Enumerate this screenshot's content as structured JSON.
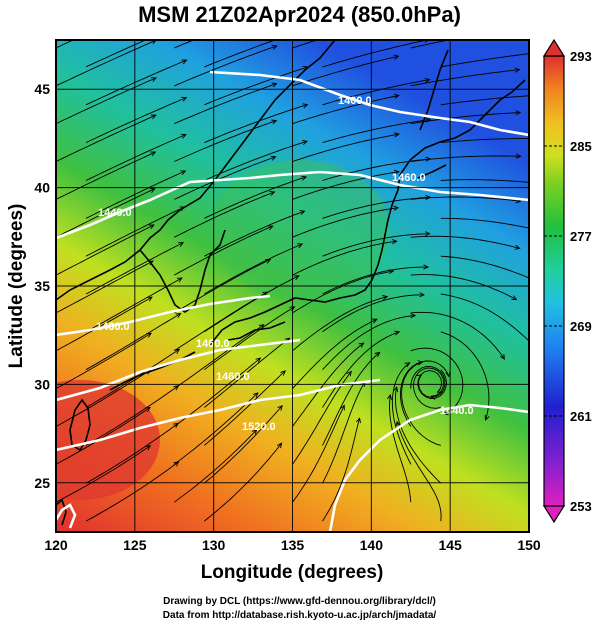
{
  "title": "MSM 21Z02Apr2024 (850.0hPa)",
  "map": {
    "xlabel": "Longitude (degrees)",
    "ylabel": "Latitude  (degrees)",
    "x_ticks": [
      120,
      125,
      130,
      135,
      140,
      145,
      150
    ],
    "y_ticks": [
      25,
      30,
      35,
      40,
      45
    ],
    "x_range": [
      120,
      150
    ],
    "y_range": [
      22.5,
      47.5
    ],
    "grid": true,
    "contour_labels": [
      "1400.0",
      "1460.0",
      "1440.0",
      "1460.0",
      "1520.0",
      "1460.0",
      "1440.0",
      "1460.0"
    ]
  },
  "colorbar": {
    "ticks": [
      "293",
      "285",
      "277",
      "269",
      "261",
      "253"
    ],
    "min": 253,
    "max": 293,
    "colors": [
      "#e020c0",
      "#8020d0",
      "#2020d0",
      "#2080f0",
      "#20c0e0",
      "#20d0a0",
      "#20c040",
      "#80d020",
      "#d0e020",
      "#f0c020",
      "#f08020",
      "#e03030"
    ]
  },
  "credits": {
    "line1": "Drawing by DCL (https://www.gfd-dennou.org/library/dcl/)",
    "line2": "Data from http://database.rish.kyoto-u.ac.jp/arch/jmadata/"
  }
}
